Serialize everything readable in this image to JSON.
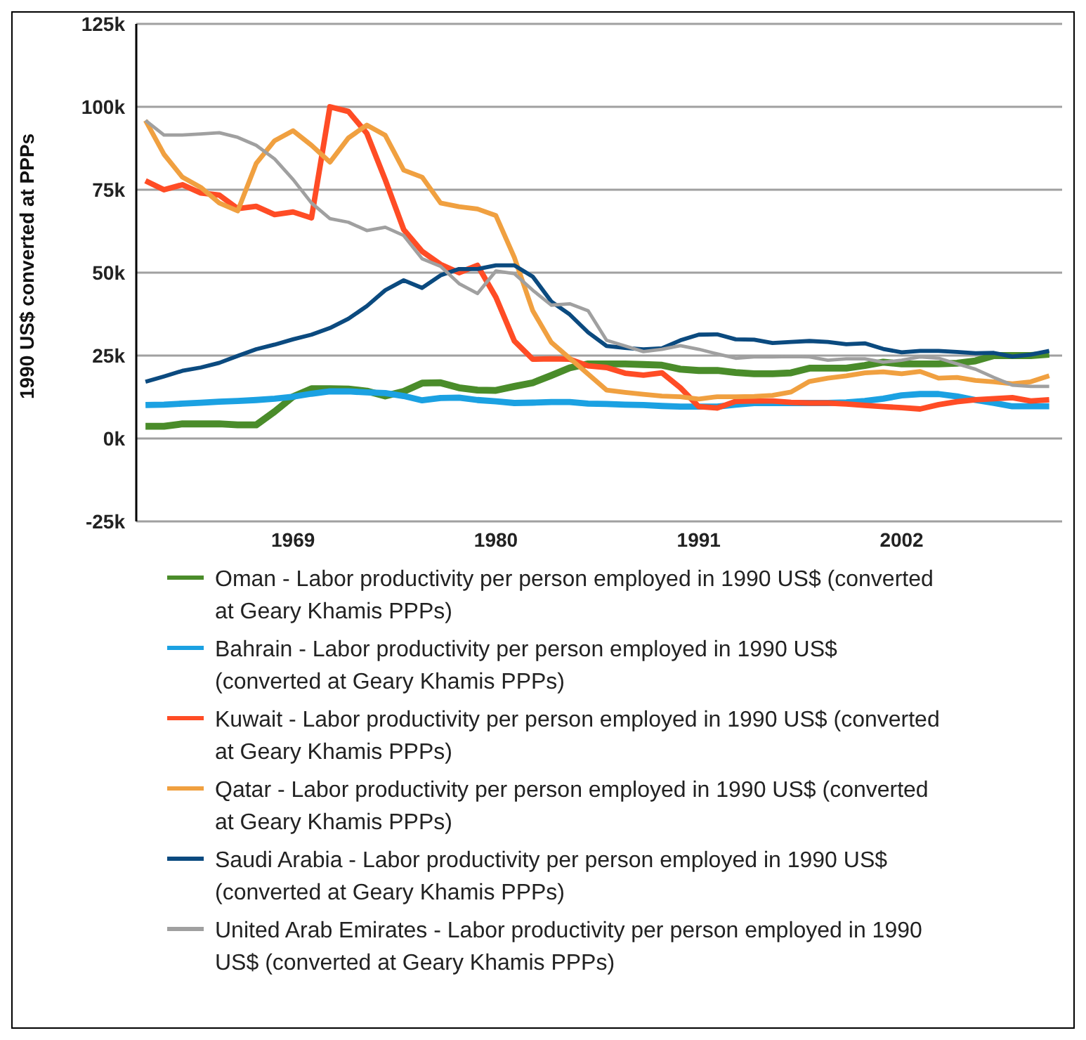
{
  "chart_data": {
    "type": "line",
    "ylabel": "1990 US$ converted at PPPs",
    "x": [
      1961,
      1962,
      1963,
      1964,
      1965,
      1966,
      1967,
      1968,
      1969,
      1970,
      1971,
      1972,
      1973,
      1974,
      1975,
      1976,
      1977,
      1978,
      1979,
      1980,
      1981,
      1982,
      1983,
      1984,
      1985,
      1986,
      1987,
      1988,
      1989,
      1990,
      1991,
      1992,
      1993,
      1994,
      1995,
      1996,
      1997,
      1998,
      1999,
      2000,
      2001,
      2002,
      2003,
      2004,
      2005,
      2006,
      2007,
      2008,
      2009,
      2010
    ],
    "xlim": [
      1960.5,
      2010.7
    ],
    "xticks": [
      1969,
      1980,
      1991,
      2002
    ],
    "ylim": [
      -25000,
      125000
    ],
    "yticks": [
      {
        "value": -25000,
        "label": "-25k"
      },
      {
        "value": 0,
        "label": "0k"
      },
      {
        "value": 25000,
        "label": "25k"
      },
      {
        "value": 50000,
        "label": "50k"
      },
      {
        "value": 75000,
        "label": "75k"
      },
      {
        "value": 100000,
        "label": "100k"
      },
      {
        "value": 125000,
        "label": "125k"
      }
    ],
    "grid": "y",
    "legend": "bottom",
    "marker": "none",
    "line_style": "solid",
    "series": [
      {
        "name": "Oman - Labor productivity per person employed in 1990 US$ (converted at Geary Khamis PPPs)",
        "color": "#4a8c2a",
        "values": [
          3700,
          3700,
          4400,
          4400,
          4400,
          4100,
          4100,
          8100,
          12600,
          15000,
          15000,
          14900,
          14300,
          12800,
          14200,
          16700,
          16800,
          15300,
          14600,
          14500,
          15700,
          16800,
          19000,
          21300,
          22500,
          22500,
          22500,
          22300,
          22100,
          20900,
          20500,
          20500,
          19900,
          19500,
          19500,
          19800,
          21200,
          21200,
          21200,
          22000,
          23000,
          22500,
          22500,
          22500,
          22700,
          23400,
          25000,
          25000,
          25000,
          25400
        ]
      },
      {
        "name": "Bahrain - Labor productivity per person employed in 1990 US$ (converted at Geary Khamis PPPs)",
        "color": "#1ba1e2",
        "values": [
          10100,
          10200,
          10500,
          10800,
          11100,
          11300,
          11600,
          12000,
          12600,
          13500,
          14200,
          14200,
          13900,
          13700,
          12800,
          11500,
          12200,
          12300,
          11600,
          11200,
          10700,
          10800,
          11000,
          11000,
          10500,
          10400,
          10200,
          10100,
          9800,
          9600,
          9600,
          9600,
          10200,
          10700,
          10700,
          10700,
          10700,
          10700,
          10900,
          11300,
          12000,
          13000,
          13400,
          13400,
          12700,
          11600,
          10700,
          9700,
          9700,
          9700
        ]
      },
      {
        "name": "Kuwait - Labor productivity per person employed in 1990 US$ (converted at Geary Khamis PPPs)",
        "color": "#ff4c25",
        "values": [
          77700,
          75000,
          76500,
          74000,
          73400,
          69300,
          70000,
          67500,
          68300,
          66500,
          100000,
          98600,
          92000,
          78000,
          63000,
          56400,
          52500,
          50000,
          52200,
          42600,
          29400,
          23900,
          24000,
          23900,
          21900,
          21400,
          19700,
          19100,
          19800,
          15300,
          9600,
          9200,
          11200,
          11300,
          11300,
          10900,
          10700,
          10700,
          10400,
          10000,
          9600,
          9300,
          8900,
          10200,
          11100,
          11700,
          12000,
          12300,
          11300,
          11700
        ]
      },
      {
        "name": "Qatar - Labor productivity per person employed in 1990 US$ (converted at Geary Khamis PPPs)",
        "color": "#f0a040",
        "values": [
          95900,
          85700,
          78800,
          75700,
          71000,
          68600,
          82900,
          89800,
          92800,
          88400,
          83300,
          90600,
          94500,
          91400,
          80900,
          78800,
          71000,
          69900,
          69200,
          67200,
          54600,
          38500,
          29000,
          24200,
          19400,
          14600,
          13900,
          13300,
          12800,
          12600,
          11900,
          12600,
          12600,
          12700,
          13000,
          14000,
          17200,
          18200,
          18900,
          19800,
          20100,
          19500,
          20200,
          18200,
          18400,
          17500,
          17100,
          16500,
          17100,
          18900
        ]
      },
      {
        "name": "Saudi Arabia - Labor productivity per person employed in 1990 US$ (converted at Geary Khamis PPPs)",
        "color": "#0b4a7f",
        "values": [
          17100,
          18700,
          20400,
          21400,
          22800,
          24900,
          26900,
          28300,
          29900,
          31300,
          33300,
          36100,
          39900,
          44700,
          47700,
          45400,
          49200,
          51100,
          51100,
          52200,
          52200,
          48800,
          41300,
          37400,
          32000,
          27900,
          27300,
          26900,
          27200,
          29600,
          31300,
          31400,
          29900,
          29800,
          28800,
          29100,
          29400,
          29100,
          28400,
          28700,
          27000,
          26000,
          26400,
          26400,
          26100,
          25700,
          25800,
          24700,
          25300,
          26400
        ]
      },
      {
        "name": "United Arab Emirates - Labor productivity per person employed in 1990 US$ (converted at Geary Khamis PPPs)",
        "color": "#a0a0a0",
        "values": [
          95900,
          91500,
          91500,
          91800,
          92200,
          90800,
          88400,
          84300,
          78100,
          71000,
          66300,
          65200,
          62700,
          63700,
          61200,
          54200,
          51900,
          46700,
          43700,
          50500,
          49700,
          44700,
          40200,
          40600,
          38500,
          29600,
          27900,
          26200,
          26900,
          28000,
          26900,
          25500,
          24200,
          24600,
          24600,
          24700,
          24600,
          23600,
          24000,
          24000,
          23000,
          23600,
          24600,
          24200,
          22500,
          20900,
          18400,
          16100,
          15700,
          15700
        ]
      }
    ]
  }
}
